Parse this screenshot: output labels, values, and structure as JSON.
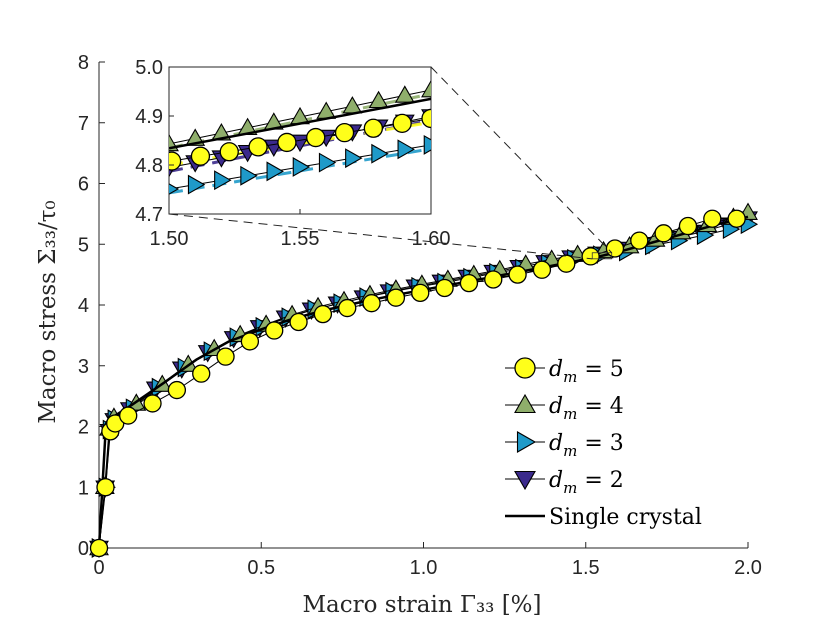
{
  "chart_data": {
    "type": "line",
    "xlabel": "Macro strain Γ₃₃ [%]",
    "ylabel": "Macro stress Σ₃₃/τ₀",
    "xlim": [
      0,
      2.0
    ],
    "ylim": [
      0,
      8
    ],
    "xticks": [
      "0",
      "0.5",
      "1.0",
      "1.5",
      "2.0"
    ],
    "yticks": [
      "0",
      "1",
      "2",
      "3",
      "4",
      "5",
      "6",
      "7",
      "8"
    ],
    "grid": false,
    "legend": {
      "placement": "bottom-right",
      "entries": [
        {
          "series": "dm5",
          "prefix": "d",
          "sub": "m",
          "suffix": " = 5"
        },
        {
          "series": "dm4",
          "prefix": "d",
          "sub": "m",
          "suffix": " = 4"
        },
        {
          "series": "dm3",
          "prefix": "d",
          "sub": "m",
          "suffix": " = 3"
        },
        {
          "series": "dm2",
          "prefix": "d",
          "sub": "m",
          "suffix": " = 2"
        },
        {
          "series": "single",
          "text": "Single crystal"
        }
      ]
    },
    "series": [
      {
        "id": "single",
        "name": "Single crystal",
        "marker": "none",
        "color": "#000000",
        "x": [
          0,
          0.01,
          0.02,
          0.03,
          0.05,
          0.1,
          0.2,
          0.3,
          0.4,
          0.5,
          0.6,
          0.7,
          0.8,
          0.9,
          1.0,
          1.1,
          1.2,
          1.3,
          1.4,
          1.5,
          1.6,
          1.7,
          1.8,
          1.9,
          2.0
        ],
        "y": [
          0,
          0.95,
          1.9,
          2.05,
          2.18,
          2.35,
          2.72,
          3.1,
          3.4,
          3.6,
          3.78,
          3.92,
          4.04,
          4.15,
          4.25,
          4.35,
          4.45,
          4.55,
          4.65,
          4.75,
          4.87,
          5.02,
          5.17,
          5.32,
          5.45
        ]
      },
      {
        "id": "dm2",
        "name": "d_m = 2",
        "marker": "triangle-down",
        "color": "#3b2a8c",
        "x": [
          0,
          0.019,
          0.032,
          0.047,
          0.095,
          0.175,
          0.255,
          0.335,
          0.415,
          0.495,
          0.575,
          0.655,
          0.735,
          0.815,
          0.895,
          0.975,
          1.055,
          1.135,
          1.215,
          1.295,
          1.375,
          1.455,
          1.535,
          1.615,
          1.695,
          1.775,
          1.855,
          1.935,
          2.0
        ],
        "y": [
          0,
          0.99,
          1.92,
          2.1,
          2.28,
          2.62,
          2.95,
          3.22,
          3.45,
          3.63,
          3.79,
          3.92,
          4.02,
          4.12,
          4.22,
          4.3,
          4.38,
          4.46,
          4.54,
          4.62,
          4.7,
          4.78,
          4.84,
          4.92,
          5.0,
          5.1,
          5.2,
          5.32,
          5.42
        ]
      },
      {
        "id": "dm3",
        "name": "d_m = 3",
        "marker": "triangle-right",
        "color": "#1f9ac9",
        "x": [
          0,
          0.021,
          0.034,
          0.049,
          0.105,
          0.185,
          0.265,
          0.345,
          0.425,
          0.505,
          0.585,
          0.665,
          0.745,
          0.825,
          0.905,
          0.985,
          1.065,
          1.145,
          1.225,
          1.305,
          1.385,
          1.465,
          1.545,
          1.625,
          1.705,
          1.785,
          1.865,
          1.945,
          2.0
        ],
        "y": [
          0,
          1.0,
          1.95,
          2.12,
          2.3,
          2.64,
          2.97,
          3.24,
          3.47,
          3.64,
          3.8,
          3.93,
          4.03,
          4.13,
          4.22,
          4.3,
          4.37,
          4.45,
          4.53,
          4.6,
          4.68,
          4.76,
          4.82,
          4.88,
          4.98,
          5.06,
          5.15,
          5.25,
          5.33
        ]
      },
      {
        "id": "dm4",
        "name": "d_m = 4",
        "marker": "triangle-up",
        "color": "#8fae6b",
        "x": [
          0,
          0.018,
          0.031,
          0.046,
          0.115,
          0.195,
          0.275,
          0.355,
          0.435,
          0.515,
          0.595,
          0.675,
          0.755,
          0.835,
          0.915,
          0.995,
          1.075,
          1.155,
          1.235,
          1.315,
          1.395,
          1.475,
          1.555,
          1.635,
          1.715,
          1.795,
          1.875,
          1.955,
          2.0
        ],
        "y": [
          0,
          1.01,
          1.97,
          2.15,
          2.38,
          2.69,
          3.02,
          3.28,
          3.51,
          3.68,
          3.84,
          3.97,
          4.07,
          4.17,
          4.26,
          4.34,
          4.42,
          4.5,
          4.58,
          4.67,
          4.75,
          4.83,
          4.89,
          4.97,
          5.08,
          5.2,
          5.32,
          5.44,
          5.52
        ]
      },
      {
        "id": "dm5",
        "name": "d_m = 5",
        "marker": "circle",
        "color": "#ffff1a",
        "x": [
          0,
          0.02,
          0.035,
          0.05,
          0.09,
          0.165,
          0.24,
          0.315,
          0.39,
          0.465,
          0.54,
          0.615,
          0.69,
          0.765,
          0.84,
          0.915,
          0.99,
          1.065,
          1.14,
          1.215,
          1.29,
          1.365,
          1.44,
          1.515,
          1.59,
          1.665,
          1.74,
          1.815,
          1.89,
          1.965
        ],
        "y": [
          0,
          1.0,
          1.92,
          2.05,
          2.18,
          2.38,
          2.6,
          2.87,
          3.15,
          3.4,
          3.58,
          3.72,
          3.85,
          3.95,
          4.03,
          4.12,
          4.2,
          4.28,
          4.36,
          4.42,
          4.5,
          4.58,
          4.68,
          4.8,
          4.93,
          5.06,
          5.18,
          5.3,
          5.42,
          5.42
        ]
      }
    ],
    "inset": {
      "xlim": [
        1.5,
        1.6
      ],
      "ylim": [
        4.7,
        5.0
      ],
      "xticks": [
        "1.50",
        "1.55",
        "1.60"
      ],
      "yticks": [
        "4.7",
        "4.8",
        "4.9",
        "5.0"
      ],
      "zoom_box": {
        "x": [
          1.52,
          1.58
        ],
        "y": [
          4.76,
          4.86
        ]
      },
      "series": [
        {
          "id": "dm4",
          "marker": "triangle-up",
          "color": "#8fae6b",
          "x": [
            1.5,
            1.51,
            1.52,
            1.53,
            1.54,
            1.55,
            1.56,
            1.57,
            1.58,
            1.59,
            1.6
          ],
          "y": [
            4.843,
            4.854,
            4.865,
            4.876,
            4.887,
            4.898,
            4.909,
            4.92,
            4.931,
            4.942,
            4.953
          ]
        },
        {
          "id": "single",
          "marker": "none",
          "color": "#000000",
          "x": [
            1.5,
            1.6
          ],
          "y": [
            4.834,
            4.935
          ]
        },
        {
          "id": "dm2",
          "marker": "triangle-down",
          "color": "#3b2a8c",
          "x": [
            1.5,
            1.51,
            1.52,
            1.53,
            1.54,
            1.55,
            1.56,
            1.57,
            1.58,
            1.59,
            1.6
          ],
          "y": [
            4.795,
            4.805,
            4.815,
            4.826,
            4.837,
            4.847,
            4.857,
            4.868,
            4.878,
            4.888,
            4.899
          ]
        },
        {
          "id": "dm5",
          "marker": "circle",
          "color": "#ffff1a",
          "x": [
            1.501,
            1.512,
            1.523,
            1.534,
            1.545,
            1.556,
            1.567,
            1.578,
            1.589,
            1.6
          ],
          "y": [
            4.808,
            4.818,
            4.827,
            4.837,
            4.846,
            4.856,
            4.866,
            4.875,
            4.885,
            4.895
          ]
        },
        {
          "id": "dm3",
          "marker": "triangle-right",
          "color": "#1f9ac9",
          "x": [
            1.5,
            1.51,
            1.52,
            1.53,
            1.54,
            1.55,
            1.56,
            1.57,
            1.58,
            1.59,
            1.6
          ],
          "y": [
            4.751,
            4.76,
            4.769,
            4.778,
            4.787,
            4.796,
            4.805,
            4.814,
            4.823,
            4.832,
            4.841
          ]
        }
      ]
    }
  }
}
